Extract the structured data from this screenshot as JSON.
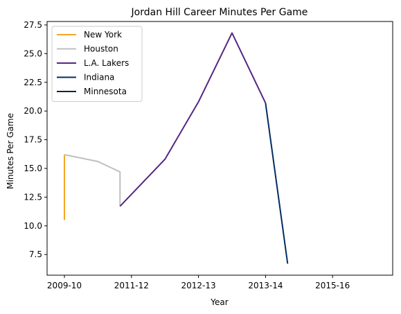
{
  "chart_data": {
    "type": "line",
    "title": "Jordan Hill  Career Minutes Per Game",
    "xlabel": "Year",
    "ylabel": "Minutes Per Game",
    "x_ticks": [
      "2009-10",
      "2011-12",
      "2012-13",
      "2013-14",
      "2015-16"
    ],
    "y_ticks": [
      "7.5",
      "10.0",
      "12.5",
      "15.0",
      "17.5",
      "20.0",
      "22.5",
      "25.0",
      "27.5"
    ],
    "ylim": [
      5.7,
      27.8
    ],
    "legend_position": "upper-left",
    "grid": false,
    "series": [
      {
        "name": "New York",
        "color": "#F5A623",
        "points": [
          [
            0,
            10.5
          ],
          [
            0,
            16.2
          ]
        ]
      },
      {
        "name": "Houston",
        "color": "#BFBFBF",
        "points": [
          [
            0,
            16.2
          ],
          [
            1,
            15.6
          ],
          [
            1.66,
            14.7
          ],
          [
            1.66,
            11.7
          ]
        ]
      },
      {
        "name": "L.A. Lakers",
        "color": "#552583",
        "points": [
          [
            1.66,
            11.7
          ],
          [
            3,
            15.8
          ],
          [
            4,
            20.8
          ],
          [
            5,
            26.8
          ],
          [
            6,
            20.7
          ]
        ]
      },
      {
        "name": "Indiana",
        "color": "#002D62",
        "points": [
          [
            6,
            20.7
          ],
          [
            6.66,
            6.7
          ]
        ]
      },
      {
        "name": "Minnesota",
        "color": "#0C2340",
        "points": []
      }
    ]
  }
}
